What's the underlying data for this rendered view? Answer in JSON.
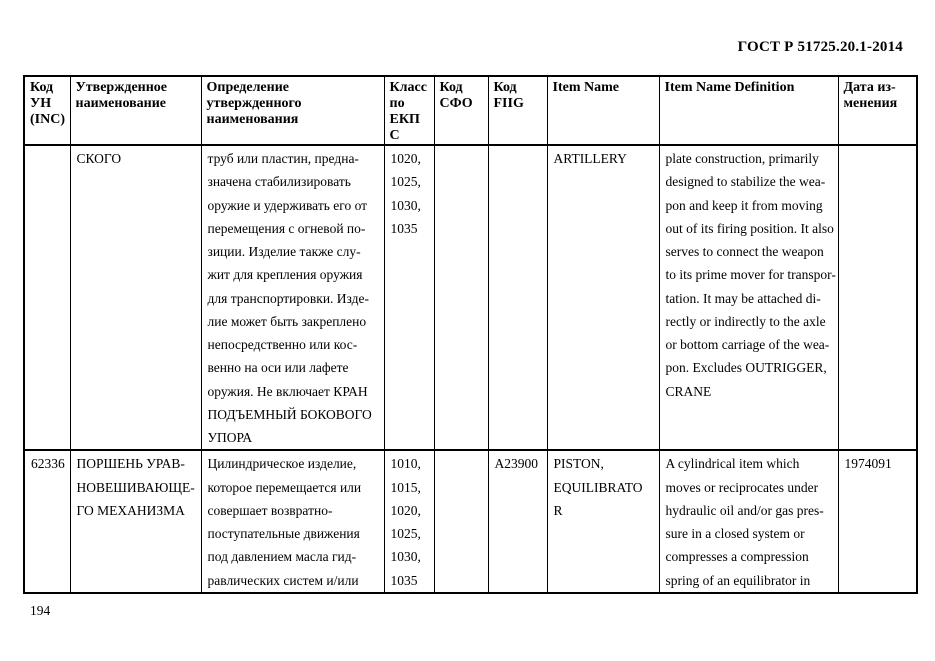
{
  "doc": {
    "standard_number": "ГОСТ Р 51725.20.1-2014",
    "page_number": "194"
  },
  "table": {
    "columns": [
      "Код\nУН\n(INC)",
      "Утвержденное\nнаименование",
      "Определение\nутвержденного\nнаименования",
      "Класс\nпо\nЕКП\nС",
      "Код\nСФО",
      "Код\nFIIG",
      "Item Name",
      "Item Name Definition",
      "Дата из-\nменения"
    ],
    "rows": [
      {
        "inc_code": "",
        "approved_name": "СКОГО",
        "approved_definition": "труб или пластин, предна-\nзначена стабилизировать\nоружие и удерживать его от\nперемещения с огневой по-\nзиции. Изделие также слу-\nжит для крепления оружия\nдля транспортировки. Изде-\nлие может быть закреплено\nнепосредственно или кос-\nвенно на оси или лафете\nоружия. Не включает КРАН\nПОДЪЕМНЫЙ БОКОВОГО\nУПОРА",
        "ekps_class": "1020,\n1025,\n1030,\n1035",
        "sfo_code": "",
        "fiig_code": "",
        "item_name": "ARTILLERY",
        "item_name_definition": "plate construction, primarily\ndesigned to stabilize the wea-\npon and keep it from moving\nout of its firing position. It also\nserves to connect the weapon\nto its prime mover for transpor-\ntation. It may be attached di-\nrectly or indirectly to the axle\nor bottom carriage of the wea-\npon. Excludes OUTRIGGER,\nCRANE",
        "change_date": ""
      },
      {
        "inc_code": "62336",
        "approved_name": "ПОРШЕНЬ УРАВ-\nНОВЕШИВАЮЩЕ-\nГО МЕХАНИЗМА",
        "approved_definition": "Цилиндрическое изделие,\nкоторое перемещается или\nсовершает возвратно-\nпоступательные движения\nпод давлением масла гид-\nравлических систем и/или",
        "ekps_class": "1010,\n1015,\n1020,\n1025,\n1030,\n1035",
        "sfo_code": "",
        "fiig_code": "A23900",
        "item_name": "PISTON,\nEQUILIBRATO\nR",
        "item_name_definition": "A cylindrical item which\nmoves or reciprocates under\nhydraulic oil and/or gas pres-\nsure in a closed system or\ncompresses a compression\nspring of an equilibrator in",
        "change_date": "1974091"
      }
    ]
  }
}
